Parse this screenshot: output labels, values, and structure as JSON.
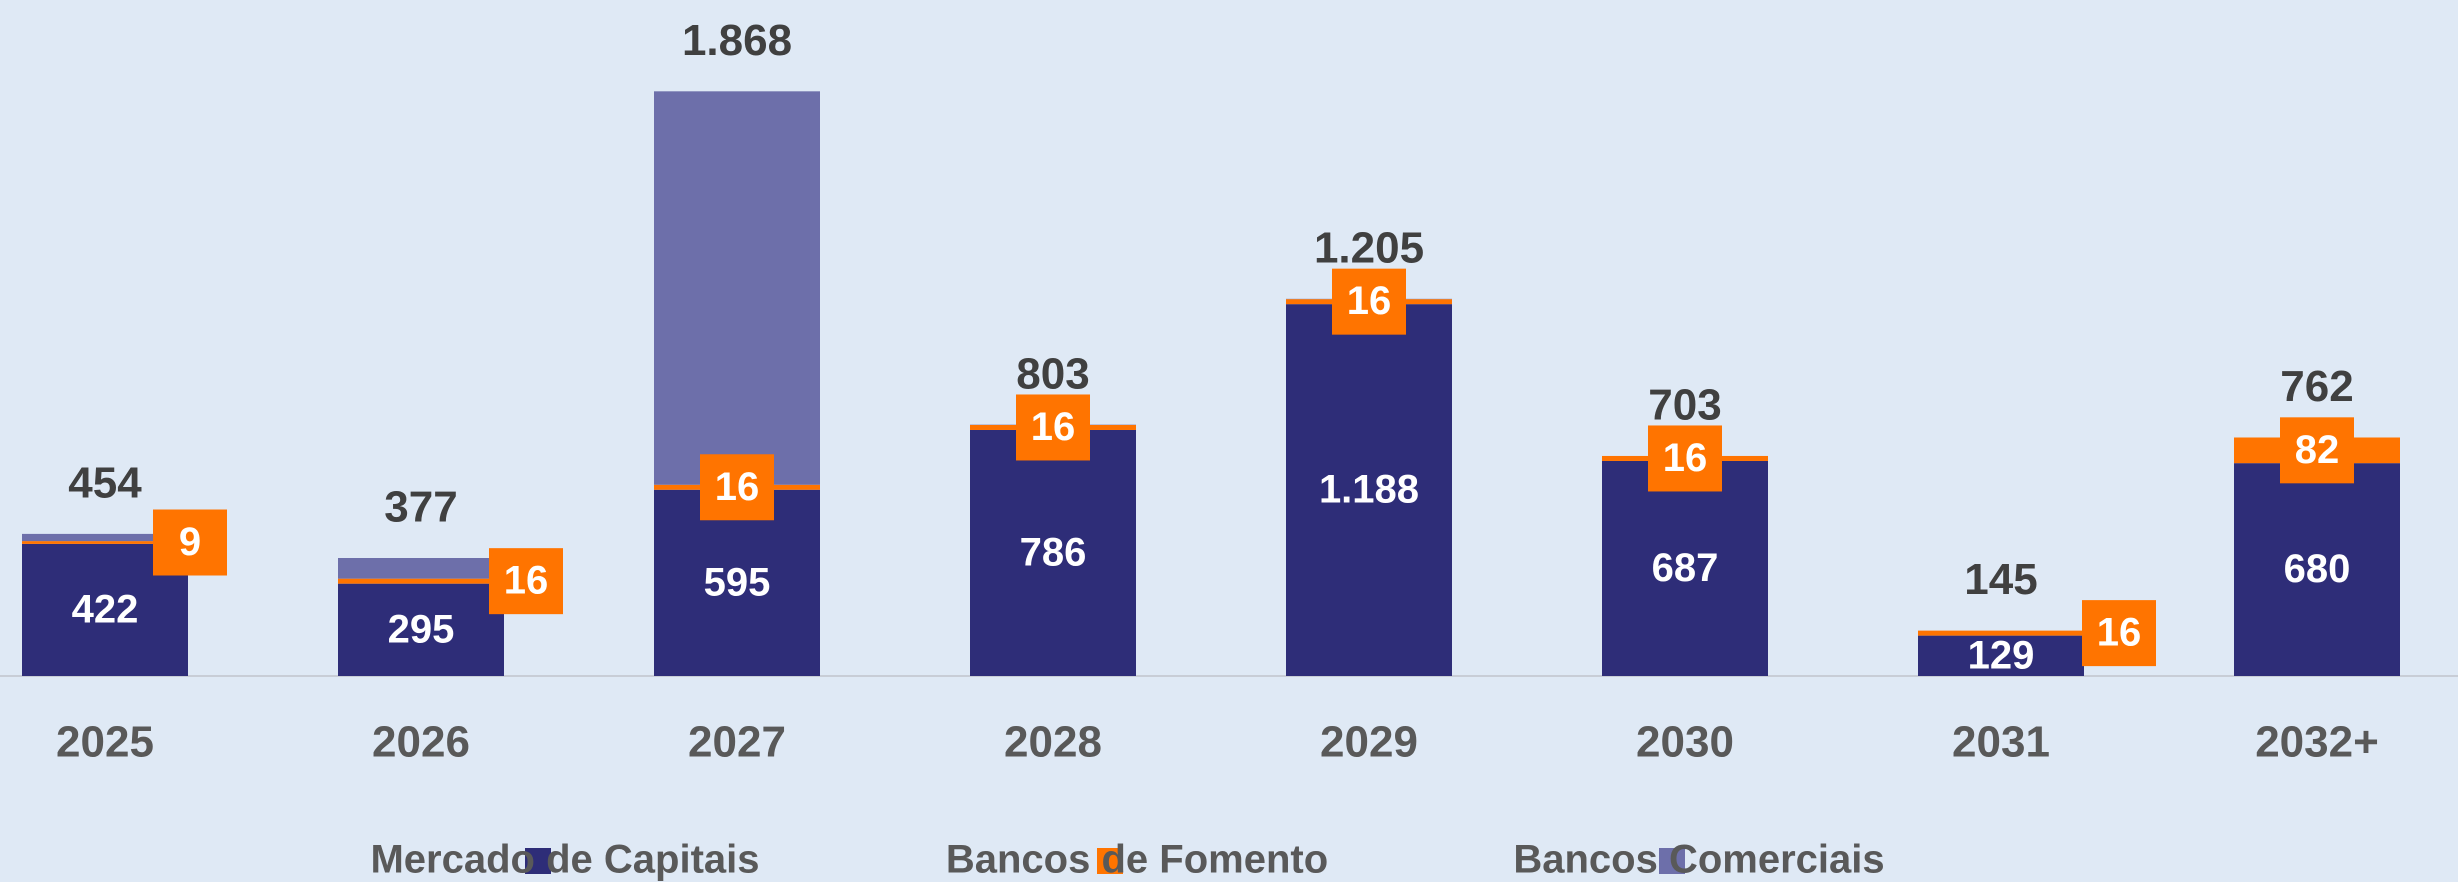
{
  "chart_data": {
    "type": "stacked_bar",
    "categories": [
      "2025",
      "2026",
      "2027",
      "2028",
      "2029",
      "2030",
      "2031",
      "2032+"
    ],
    "series": [
      {
        "name": "Mercado de Capitais",
        "color": "#2e2d78",
        "values": [
          422,
          295,
          595,
          786,
          1188,
          687,
          129,
          680
        ],
        "value_labels": [
          "422",
          "295",
          "595",
          "786",
          "1.188",
          "687",
          "129",
          "680"
        ]
      },
      {
        "name": "Bancos de Fomento",
        "color": "#ff7400",
        "values": [
          9,
          16,
          16,
          16,
          16,
          16,
          16,
          82
        ]
      },
      {
        "name": "Bancos Comerciais",
        "color": "#6d6faa",
        "values": [
          23,
          66,
          1257,
          1,
          1,
          0,
          0,
          0
        ]
      }
    ],
    "totals": {
      "values": [
        454,
        377,
        1868,
        803,
        1205,
        703,
        145,
        762
      ],
      "value_labels": [
        "454",
        "377",
        "1.868",
        "803",
        "1.205",
        "703",
        "145",
        "762"
      ]
    },
    "ylim": [
      0,
      2000
    ]
  }
}
